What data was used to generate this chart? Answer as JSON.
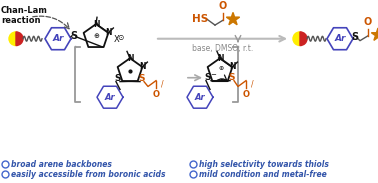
{
  "bg_color": "#ffffff",
  "top_left_label": "Chan-Lam\nreaction",
  "arrow_label": "base, DMSO, r.t.",
  "bullet_points": [
    "broad arene backbones",
    "easily accessible from boronic acids",
    "high selectivity towards thiols",
    "mild condition and metal-free"
  ],
  "hs_color": "#cc5500",
  "o_color": "#cc5500",
  "ar_ring_color": "#4444bb",
  "imidazolium_color": "#111111",
  "arrow_color": "#aaaaaa",
  "bracket_color": "#999999",
  "capsule_yellow": "#ffee00",
  "capsule_red": "#cc2222",
  "star_color": "#cc7700",
  "bullet_color": "#4466cc",
  "bullet_text_color": "#3355aa"
}
